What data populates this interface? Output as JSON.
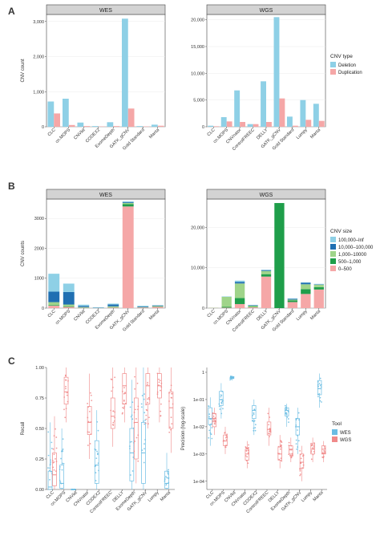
{
  "panel_letters": [
    "A",
    "B",
    "C"
  ],
  "colors": {
    "deletion": "#8ed0e6",
    "duplication": "#f5a7a7",
    "size_100k_inf": "#8ed0e6",
    "size_10k_100k": "#1f6fb2",
    "size_1k_10k": "#9fd48a",
    "size_500_1000": "#1f9e4a",
    "size_0_500": "#f5a7a7",
    "wes": "#6bbde3",
    "wgs": "#f08a8a",
    "strip": "#d3d3d3",
    "panel_bg": "#ffffff",
    "grid": "#ebebeb"
  },
  "chart_data": [
    {
      "id": "A_WES",
      "type": "bar",
      "strip": "WES",
      "ylabel": "CNV count",
      "ylim": [
        0,
        3200
      ],
      "yticks": [
        0,
        1000,
        2000,
        3000
      ],
      "ytick_labels": [
        "0",
        "1,000",
        "2,000",
        "3,000"
      ],
      "categories": [
        "CLC",
        "cn.MOPS",
        "CNVkit",
        "CODEX2",
        "ExomeDepth",
        "GATK_gCNV",
        "Gold Standard",
        "Manta"
      ],
      "series": [
        {
          "name": "Deletion",
          "values": [
            720,
            800,
            120,
            20,
            130,
            3080,
            20,
            60
          ]
        },
        {
          "name": "Duplication",
          "values": [
            380,
            50,
            20,
            10,
            20,
            520,
            10,
            30
          ]
        }
      ]
    },
    {
      "id": "A_WGS",
      "type": "bar",
      "strip": "WGS",
      "ylim": [
        0,
        21000
      ],
      "yticks": [
        0,
        5000,
        10000,
        15000,
        20000
      ],
      "ytick_labels": [
        "0",
        "5,000",
        "10,000",
        "15,000",
        "20,000"
      ],
      "categories": [
        "CLC",
        "cn.MOPS",
        "CNVnator",
        "ControlFREEC",
        "DELLY",
        "GATK_gCNV",
        "Gold Standard",
        "Lumpy",
        "Manta"
      ],
      "series": [
        {
          "name": "Deletion",
          "values": [
            200,
            1800,
            6800,
            500,
            8500,
            20500,
            1900,
            5000,
            4300
          ]
        },
        {
          "name": "Duplication",
          "values": [
            100,
            1000,
            900,
            500,
            900,
            5300,
            200,
            1300,
            1100
          ]
        }
      ],
      "legend": {
        "title": "CNV type",
        "placement": "right",
        "entries": [
          "Deletion",
          "Duplication"
        ]
      }
    },
    {
      "id": "B_WES",
      "type": "bar",
      "stacked": true,
      "strip": "WES",
      "ylabel": "CNV counts",
      "ylim": [
        0,
        3650
      ],
      "yticks": [
        0,
        1000,
        2000,
        3000
      ],
      "ytick_labels": [
        "0",
        "1000",
        "2000",
        "3000"
      ],
      "categories": [
        "CLC",
        "cn.MOPS",
        "CNVkit",
        "CODEX2",
        "ExomeDepth",
        "GATK_gCNV",
        "Gold Standard",
        "Manta"
      ],
      "series": [
        {
          "name": "0–500",
          "values": [
            80,
            40,
            10,
            0,
            20,
            3400,
            20,
            40
          ]
        },
        {
          "name": "500–1,000",
          "values": [
            20,
            20,
            5,
            0,
            10,
            80,
            5,
            10
          ]
        },
        {
          "name": "1,000–10000",
          "values": [
            100,
            60,
            20,
            5,
            30,
            40,
            10,
            20
          ]
        },
        {
          "name": "10,000–100,000",
          "values": [
            350,
            420,
            40,
            10,
            60,
            30,
            20,
            20
          ]
        },
        {
          "name": "100,000–Inf",
          "values": [
            600,
            280,
            40,
            10,
            30,
            20,
            25,
            10
          ]
        }
      ]
    },
    {
      "id": "B_WGS",
      "type": "bar",
      "stacked": true,
      "strip": "WGS",
      "ylim": [
        0,
        27000
      ],
      "yticks": [
        0,
        10000,
        20000
      ],
      "ytick_labels": [
        "0",
        "10,000",
        "20,000"
      ],
      "categories": [
        "CLC",
        "cn.MOPS",
        "CNVnator",
        "ControlFREEC",
        "DELLY",
        "GATK_gCNV",
        "Gold Standard",
        "Lumpy",
        "Manta"
      ],
      "series": [
        {
          "name": "0–500",
          "values": [
            50,
            100,
            1000,
            200,
            7800,
            0,
            1500,
            3500,
            4600
          ]
        },
        {
          "name": "500–1,000",
          "values": [
            20,
            200,
            1500,
            100,
            600,
            26000,
            400,
            1200,
            600
          ]
        },
        {
          "name": "1,000–10000",
          "values": [
            30,
            2500,
            3600,
            300,
            800,
            0,
            200,
            1200,
            600
          ]
        },
        {
          "name": "10,000–100,000",
          "values": [
            0,
            0,
            400,
            100,
            200,
            0,
            200,
            400,
            100
          ]
        },
        {
          "name": "100,000–Inf",
          "values": [
            0,
            100,
            300,
            100,
            100,
            0,
            100,
            100,
            100
          ]
        }
      ],
      "legend": {
        "title": "CNV size",
        "placement": "right",
        "entries": [
          "100,000–Inf",
          "10,000–100,000",
          "1,000–10000",
          "500–1,000",
          "0–500"
        ]
      }
    },
    {
      "id": "C_Recall",
      "type": "box",
      "ylabel": "Recall",
      "ylim": [
        0,
        1
      ],
      "yticks": [
        0,
        0.25,
        0.5,
        0.75,
        1
      ],
      "ytick_labels": [
        "0.00",
        "0.25",
        "0.50",
        "0.75",
        "1.00"
      ],
      "categories": [
        "CLC",
        "cn.MOPS",
        "CNVkit",
        "CNVnator",
        "CODEX2",
        "ControlFREEC",
        "DELLY",
        "ExomeDepth",
        "GATK_gCNV",
        "Lumpy",
        "Manta"
      ],
      "boxes": [
        {
          "category": "CLC",
          "tool": "WES",
          "q": [
            0,
            0.0,
            0.02,
            0.15,
            0.55
          ]
        },
        {
          "category": "CLC",
          "tool": "WGS",
          "q": [
            0,
            0.03,
            0.12,
            0.3,
            0.6
          ]
        },
        {
          "category": "cn.MOPS",
          "tool": "WES",
          "q": [
            0,
            0.01,
            0.05,
            0.2,
            0.5
          ]
        },
        {
          "category": "cn.MOPS",
          "tool": "WGS",
          "q": [
            0.55,
            0.7,
            0.8,
            0.92,
            1
          ]
        },
        {
          "category": "CNVkit",
          "tool": "WES",
          "q": [
            0,
            0,
            0,
            0,
            0
          ]
        },
        {
          "category": "CNVnator",
          "tool": "WGS",
          "q": [
            0.25,
            0.45,
            0.55,
            0.68,
            0.95
          ]
        },
        {
          "category": "CODEX2",
          "tool": "WES",
          "q": [
            0,
            0.05,
            0.2,
            0.4,
            0.65
          ]
        },
        {
          "category": "ControlFREEC",
          "tool": "WGS",
          "q": [
            0.35,
            0.5,
            0.6,
            0.75,
            1
          ]
        },
        {
          "category": "DELLY",
          "tool": "WGS",
          "q": [
            0.55,
            0.7,
            0.85,
            0.95,
            1
          ]
        },
        {
          "category": "ExomeDepth",
          "tool": "WES",
          "q": [
            0,
            0.07,
            0.3,
            0.5,
            0.9
          ]
        },
        {
          "category": "ExomeDepth",
          "tool": "WGS",
          "q": [
            0.05,
            0.25,
            0.55,
            0.75,
            1
          ]
        },
        {
          "category": "GATK_gCNV",
          "tool": "WES",
          "q": [
            0,
            0.05,
            0.3,
            0.55,
            1
          ]
        },
        {
          "category": "GATK_gCNV",
          "tool": "WGS",
          "q": [
            0.5,
            0.7,
            0.85,
            0.95,
            1
          ]
        },
        {
          "category": "Lumpy",
          "tool": "WGS",
          "q": [
            0.55,
            0.75,
            0.85,
            0.95,
            1
          ]
        },
        {
          "category": "Manta",
          "tool": "WES",
          "q": [
            0,
            0.01,
            0.05,
            0.15,
            0.3
          ]
        },
        {
          "category": "Manta",
          "tool": "WGS",
          "q": [
            0.3,
            0.5,
            0.67,
            0.8,
            1
          ]
        }
      ]
    },
    {
      "id": "C_Precision",
      "type": "box",
      "ylabel": "Precision (log-scale)",
      "log_scale": true,
      "ylim": [
        5e-05,
        1.5
      ],
      "yticks": [
        1,
        0.1,
        0.01,
        0.001,
        0.0001
      ],
      "ytick_labels": [
        "1",
        "1e-01",
        "1e-02",
        "1e-03",
        "1e-04"
      ],
      "categories": [
        "CLC",
        "cn.MOPS",
        "CNVkit",
        "CNVnator",
        "CODEX2",
        "ControlFREEC",
        "DELLY",
        "ExomeDepth",
        "GATK_gCNV",
        "Lumpy",
        "Manta"
      ],
      "boxes": [
        {
          "category": "CLC",
          "tool": "WES",
          "q": [
            0.002,
            0.012,
            0.02,
            0.05,
            0.12
          ]
        },
        {
          "category": "CLC",
          "tool": "WGS",
          "q": [
            0.005,
            0.01,
            0.02,
            0.03,
            0.05
          ]
        },
        {
          "category": "cn.MOPS",
          "tool": "WES",
          "q": [
            0.02,
            0.06,
            0.1,
            0.2,
            0.4
          ]
        },
        {
          "category": "cn.MOPS",
          "tool": "WGS",
          "q": [
            0.001,
            0.002,
            0.003,
            0.005,
            0.01
          ]
        },
        {
          "category": "CNVkit",
          "tool": "WES",
          "q": [
            0.5,
            0.6,
            0.65,
            0.7,
            0.75
          ]
        },
        {
          "category": "CNVnator",
          "tool": "WGS",
          "q": [
            0.0003,
            0.0006,
            0.001,
            0.0015,
            0.003
          ]
        },
        {
          "category": "CODEX2",
          "tool": "WES",
          "q": [
            0.005,
            0.02,
            0.04,
            0.06,
            0.1
          ]
        },
        {
          "category": "ControlFREEC",
          "tool": "WGS",
          "q": [
            0.002,
            0.005,
            0.008,
            0.015,
            0.05
          ]
        },
        {
          "category": "DELLY",
          "tool": "WGS",
          "q": [
            0.0003,
            0.0006,
            0.001,
            0.0018,
            0.005
          ]
        },
        {
          "category": "ExomeDepth",
          "tool": "WES",
          "q": [
            0.01,
            0.025,
            0.04,
            0.05,
            0.07
          ]
        },
        {
          "category": "ExomeDepth",
          "tool": "WGS",
          "q": [
            0.0005,
            0.001,
            0.0015,
            0.002,
            0.004
          ]
        },
        {
          "category": "GATK_gCNV",
          "tool": "WES",
          "q": [
            0.001,
            0.005,
            0.01,
            0.02,
            0.05
          ]
        },
        {
          "category": "GATK_gCNV",
          "tool": "WGS",
          "q": [
            0.0001,
            0.0003,
            0.0005,
            0.001,
            0.002
          ]
        },
        {
          "category": "Lumpy",
          "tool": "WGS",
          "q": [
            0.0005,
            0.001,
            0.0015,
            0.0025,
            0.004
          ]
        },
        {
          "category": "Manta",
          "tool": "WES",
          "q": [
            0.05,
            0.15,
            0.25,
            0.5,
            0.9
          ]
        },
        {
          "category": "Manta",
          "tool": "WGS",
          "q": [
            0.0005,
            0.001,
            0.0015,
            0.002,
            0.003
          ]
        }
      ],
      "legend": {
        "title": "Tool",
        "placement": "right",
        "entries": [
          "WES",
          "WGS"
        ]
      }
    }
  ]
}
